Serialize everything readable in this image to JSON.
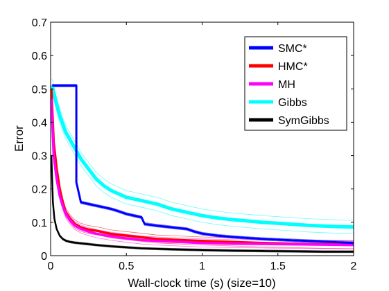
{
  "chart_data": {
    "type": "line",
    "xlabel": "Wall-clock time (s) (size=10)",
    "ylabel": "Error",
    "xlim": [
      0,
      2
    ],
    "ylim": [
      0,
      0.7
    ],
    "xticks": [
      0,
      0.5,
      1,
      1.5,
      2
    ],
    "xtick_labels": [
      "0",
      "0.5",
      "1",
      "1.5",
      "2"
    ],
    "yticks": [
      0,
      0.1,
      0.2,
      0.3,
      0.4,
      0.5,
      0.6,
      0.7
    ],
    "ytick_labels": [
      "0",
      "0.1",
      "0.2",
      "0.3",
      "0.4",
      "0.5",
      "0.6",
      "0.7"
    ],
    "grid": false,
    "legend_position": "top-right",
    "series": [
      {
        "name": "SMC*",
        "color": "#0000ff",
        "step": true,
        "band": 0.004,
        "x": [
          0.01,
          0.17,
          0.17,
          0.2,
          0.25,
          0.3,
          0.35,
          0.4,
          0.45,
          0.5,
          0.55,
          0.6,
          0.62,
          0.7,
          0.8,
          0.9,
          0.95,
          1.0,
          1.1,
          1.2,
          1.3,
          1.4,
          1.5,
          1.6,
          1.7,
          1.8,
          1.9,
          2.0
        ],
        "y": [
          0.51,
          0.51,
          0.22,
          0.16,
          0.155,
          0.15,
          0.145,
          0.14,
          0.133,
          0.125,
          0.12,
          0.115,
          0.095,
          0.09,
          0.085,
          0.08,
          0.072,
          0.066,
          0.06,
          0.056,
          0.053,
          0.05,
          0.048,
          0.046,
          0.044,
          0.042,
          0.04,
          0.038
        ]
      },
      {
        "name": "HMC*",
        "color": "#ff0000",
        "band": 0.012,
        "x": [
          0.005,
          0.02,
          0.04,
          0.06,
          0.08,
          0.1,
          0.13,
          0.16,
          0.2,
          0.25,
          0.3,
          0.35,
          0.4,
          0.5,
          0.6,
          0.7,
          0.8,
          0.9,
          1.0,
          1.2,
          1.4,
          1.6,
          1.8,
          2.0
        ],
        "y": [
          0.5,
          0.34,
          0.26,
          0.2,
          0.16,
          0.13,
          0.11,
          0.095,
          0.085,
          0.078,
          0.075,
          0.07,
          0.065,
          0.06,
          0.055,
          0.05,
          0.048,
          0.046,
          0.044,
          0.041,
          0.038,
          0.036,
          0.034,
          0.033
        ]
      },
      {
        "name": "MH",
        "color": "#ff00ff",
        "band": 0.012,
        "x": [
          0.005,
          0.02,
          0.04,
          0.06,
          0.08,
          0.1,
          0.13,
          0.16,
          0.2,
          0.25,
          0.3,
          0.35,
          0.4,
          0.5,
          0.6,
          0.7,
          0.8,
          0.9,
          1.0,
          1.2,
          1.4,
          1.6,
          1.8,
          2.0
        ],
        "y": [
          0.47,
          0.3,
          0.23,
          0.18,
          0.15,
          0.125,
          0.105,
          0.09,
          0.08,
          0.072,
          0.066,
          0.062,
          0.058,
          0.052,
          0.047,
          0.044,
          0.042,
          0.04,
          0.038,
          0.036,
          0.035,
          0.034,
          0.033,
          0.032
        ]
      },
      {
        "name": "Gibbs",
        "color": "#00ffff",
        "band": 0.02,
        "x": [
          0.01,
          0.03,
          0.06,
          0.1,
          0.15,
          0.2,
          0.25,
          0.3,
          0.35,
          0.4,
          0.45,
          0.5,
          0.6,
          0.7,
          0.8,
          0.9,
          1.0,
          1.1,
          1.2,
          1.3,
          1.4,
          1.5,
          1.6,
          1.7,
          1.8,
          1.9,
          2.0
        ],
        "y": [
          0.51,
          0.47,
          0.42,
          0.37,
          0.33,
          0.29,
          0.26,
          0.23,
          0.21,
          0.195,
          0.185,
          0.175,
          0.165,
          0.155,
          0.14,
          0.13,
          0.12,
          0.113,
          0.108,
          0.104,
          0.1,
          0.097,
          0.094,
          0.091,
          0.089,
          0.087,
          0.086
        ]
      },
      {
        "name": "SymGibbs",
        "color": "#000000",
        "band": 0.003,
        "x": [
          0.005,
          0.015,
          0.025,
          0.04,
          0.06,
          0.08,
          0.1,
          0.13,
          0.16,
          0.2,
          0.3,
          0.4,
          0.5,
          0.6,
          0.8,
          1.0,
          1.2,
          1.4,
          1.6,
          1.8,
          2.0
        ],
        "y": [
          0.3,
          0.16,
          0.11,
          0.08,
          0.06,
          0.05,
          0.045,
          0.041,
          0.039,
          0.037,
          0.032,
          0.028,
          0.025,
          0.022,
          0.019,
          0.017,
          0.015,
          0.014,
          0.013,
          0.012,
          0.012
        ]
      }
    ]
  }
}
